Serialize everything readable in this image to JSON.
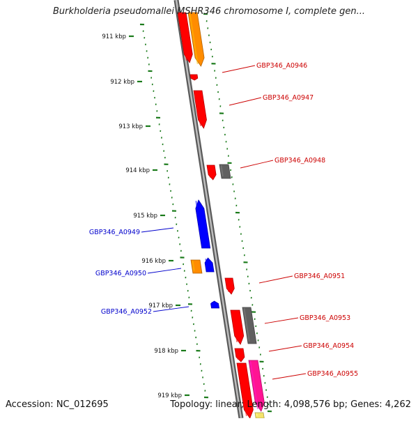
{
  "title": "Burkholderia pseudomallei MSHR346 chromosome I, complete gen...",
  "footer": {
    "accession": "Accession: NC_012695",
    "topology": "Topology: linear; Length: 4,098,576 bp; Genes: 4,262"
  },
  "colors": {
    "backbone": "#8c8c8c",
    "ticks": "#1a7a1a",
    "forward_label": "#cc0000",
    "reverse_label": "#0000cc",
    "red": "#ff0000",
    "orange": "#ff8c00",
    "blue": "#0000ff",
    "gray": "#606060",
    "pink": "#ff1493",
    "yellow": "#f4e36b"
  },
  "kbp_ticks": [
    "911 kbp",
    "912 kbp",
    "913 kbp",
    "914 kbp",
    "915 kbp",
    "916 kbp",
    "917 kbp",
    "918 kbp",
    "919 kbp"
  ],
  "gene_labels": [
    {
      "text": "GBP346_A0946",
      "strand": "forward"
    },
    {
      "text": "GBP346_A0947",
      "strand": "forward"
    },
    {
      "text": "GBP346_A0948",
      "strand": "forward"
    },
    {
      "text": "GBP346_A0949",
      "strand": "reverse"
    },
    {
      "text": "GBP346_A0950",
      "strand": "reverse"
    },
    {
      "text": "GBP346_A0951",
      "strand": "forward"
    },
    {
      "text": "GBP346_A0952",
      "strand": "reverse"
    },
    {
      "text": "GBP346_A0953",
      "strand": "forward"
    },
    {
      "text": "GBP346_A0954",
      "strand": "forward"
    },
    {
      "text": "GBP346_A0955",
      "strand": "forward"
    }
  ],
  "genes": [
    {
      "name": "gene-red-top",
      "color": "red"
    },
    {
      "name": "gene-orange-top",
      "color": "orange"
    },
    {
      "name": "gene-small-red-1",
      "color": "red"
    },
    {
      "name": "gene-red-a0947",
      "color": "red"
    },
    {
      "name": "gene-red-a0948",
      "color": "red"
    },
    {
      "name": "gene-gray-a0948",
      "color": "gray"
    },
    {
      "name": "gene-blue-a0949",
      "color": "blue"
    },
    {
      "name": "gene-orange-a0950",
      "color": "orange"
    },
    {
      "name": "gene-blue-a0950",
      "color": "blue"
    },
    {
      "name": "gene-red-a0951",
      "color": "red"
    },
    {
      "name": "gene-blue-a0952",
      "color": "blue"
    },
    {
      "name": "gene-red-a0953",
      "color": "red"
    },
    {
      "name": "gene-gray-a0953",
      "color": "gray"
    },
    {
      "name": "gene-red-a0954",
      "color": "red"
    },
    {
      "name": "gene-red-a0955",
      "color": "red"
    },
    {
      "name": "gene-pink-a0955",
      "color": "pink"
    },
    {
      "name": "gene-yellow-bottom",
      "color": "yellow"
    }
  ]
}
